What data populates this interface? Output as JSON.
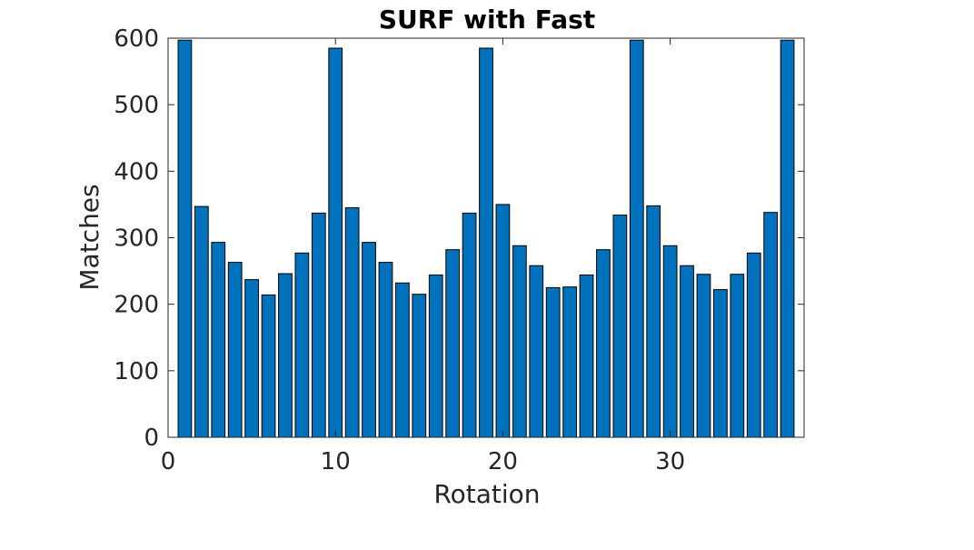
{
  "chart_data": {
    "type": "bar",
    "title": "SURF with Fast",
    "xlabel": "Rotation",
    "ylabel": "Matches",
    "xlim": [
      0,
      38
    ],
    "ylim": [
      0,
      600
    ],
    "xticks": [
      0,
      10,
      20,
      30
    ],
    "yticks": [
      0,
      100,
      200,
      300,
      400,
      500,
      600
    ],
    "grid": false,
    "x": [
      1,
      2,
      3,
      4,
      5,
      6,
      7,
      8,
      9,
      10,
      11,
      12,
      13,
      14,
      15,
      16,
      17,
      18,
      19,
      20,
      21,
      22,
      23,
      24,
      25,
      26,
      27,
      28,
      29,
      30,
      31,
      32,
      33,
      34,
      35,
      36,
      37
    ],
    "values": [
      597,
      347,
      293,
      263,
      237,
      214,
      246,
      277,
      337,
      585,
      345,
      293,
      263,
      232,
      215,
      244,
      282,
      337,
      585,
      350,
      288,
      258,
      225,
      226,
      244,
      282,
      334,
      597,
      348,
      288,
      258,
      245,
      222,
      245,
      277,
      338,
      597
    ],
    "colors": {
      "bar_fill": "#0072BD",
      "bar_edge": "#000000",
      "axis": "#262626"
    }
  }
}
